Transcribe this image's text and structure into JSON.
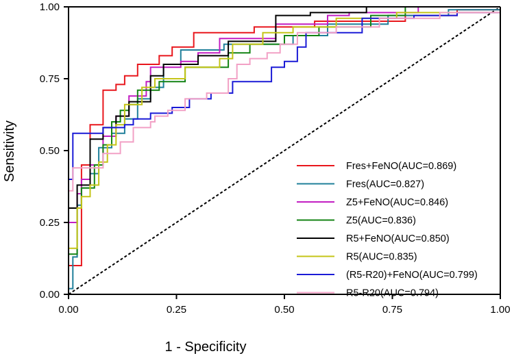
{
  "chart_data": {
    "type": "line",
    "title": "",
    "xlabel": "1 - Specificity",
    "ylabel": "Sensitivity",
    "xlim": [
      0,
      1
    ],
    "ylim": [
      0,
      1
    ],
    "xticks": [
      "0.00",
      "0.25",
      "0.50",
      "0.75",
      "1.00"
    ],
    "yticks": [
      "0.00",
      "0.25",
      "0.50",
      "0.75",
      "1.00"
    ],
    "grid": false,
    "legend_position": "bottom-right",
    "reference_line": {
      "name": "chance",
      "style": "dashed",
      "color": "#000000",
      "points": [
        [
          0,
          0
        ],
        [
          1,
          1
        ]
      ]
    },
    "series": [
      {
        "name": "Fres+FeNO(AUC=0.869)",
        "color": "#e8161c",
        "points": [
          [
            0,
            0
          ],
          [
            0,
            0.1
          ],
          [
            0.03,
            0.1
          ],
          [
            0.03,
            0.45
          ],
          [
            0.05,
            0.45
          ],
          [
            0.05,
            0.59
          ],
          [
            0.08,
            0.59
          ],
          [
            0.08,
            0.71
          ],
          [
            0.11,
            0.71
          ],
          [
            0.11,
            0.73
          ],
          [
            0.13,
            0.73
          ],
          [
            0.13,
            0.76
          ],
          [
            0.16,
            0.76
          ],
          [
            0.16,
            0.8
          ],
          [
            0.21,
            0.8
          ],
          [
            0.21,
            0.83
          ],
          [
            0.24,
            0.83
          ],
          [
            0.24,
            0.86
          ],
          [
            0.29,
            0.86
          ],
          [
            0.29,
            0.91
          ],
          [
            0.43,
            0.91
          ],
          [
            0.43,
            0.93
          ],
          [
            0.57,
            0.93
          ],
          [
            0.57,
            0.95
          ],
          [
            0.78,
            0.95
          ],
          [
            0.78,
            0.97
          ],
          [
            0.9,
            0.97
          ],
          [
            0.9,
            0.99
          ],
          [
            1,
            0.99
          ]
        ]
      },
      {
        "name": "Fres(AUC=0.827)",
        "color": "#1f7f9a",
        "points": [
          [
            0,
            0.02
          ],
          [
            0.01,
            0.02
          ],
          [
            0.01,
            0.13
          ],
          [
            0.02,
            0.13
          ],
          [
            0.02,
            0.31
          ],
          [
            0.03,
            0.31
          ],
          [
            0.03,
            0.37
          ],
          [
            0.05,
            0.37
          ],
          [
            0.05,
            0.42
          ],
          [
            0.07,
            0.42
          ],
          [
            0.07,
            0.51
          ],
          [
            0.1,
            0.51
          ],
          [
            0.1,
            0.56
          ],
          [
            0.13,
            0.56
          ],
          [
            0.13,
            0.61
          ],
          [
            0.16,
            0.61
          ],
          [
            0.16,
            0.68
          ],
          [
            0.19,
            0.68
          ],
          [
            0.19,
            0.72
          ],
          [
            0.22,
            0.72
          ],
          [
            0.22,
            0.8
          ],
          [
            0.26,
            0.8
          ],
          [
            0.26,
            0.85
          ],
          [
            0.36,
            0.85
          ],
          [
            0.36,
            0.87
          ],
          [
            0.52,
            0.87
          ],
          [
            0.52,
            0.9
          ],
          [
            0.6,
            0.9
          ],
          [
            0.6,
            0.94
          ],
          [
            0.74,
            0.94
          ],
          [
            0.74,
            0.97
          ],
          [
            0.88,
            0.97
          ],
          [
            0.88,
            0.99
          ],
          [
            1,
            0.99
          ]
        ]
      },
      {
        "name": "Z5+FeNO(AUC=0.846)",
        "color": "#c21ec2",
        "points": [
          [
            0,
            0.25
          ],
          [
            0.02,
            0.25
          ],
          [
            0.02,
            0.35
          ],
          [
            0.03,
            0.35
          ],
          [
            0.03,
            0.4
          ],
          [
            0.05,
            0.4
          ],
          [
            0.05,
            0.45
          ],
          [
            0.08,
            0.45
          ],
          [
            0.08,
            0.55
          ],
          [
            0.11,
            0.55
          ],
          [
            0.11,
            0.62
          ],
          [
            0.14,
            0.62
          ],
          [
            0.14,
            0.69
          ],
          [
            0.18,
            0.69
          ],
          [
            0.18,
            0.74
          ],
          [
            0.19,
            0.74
          ],
          [
            0.19,
            0.79
          ],
          [
            0.26,
            0.79
          ],
          [
            0.26,
            0.81
          ],
          [
            0.3,
            0.81
          ],
          [
            0.3,
            0.84
          ],
          [
            0.35,
            0.84
          ],
          [
            0.35,
            0.89
          ],
          [
            0.48,
            0.89
          ],
          [
            0.48,
            0.94
          ],
          [
            0.6,
            0.94
          ],
          [
            0.6,
            0.97
          ],
          [
            0.65,
            0.97
          ],
          [
            0.65,
            0.98
          ],
          [
            0.81,
            0.98
          ],
          [
            0.81,
            1.0
          ],
          [
            1,
            1.0
          ]
        ]
      },
      {
        "name": "Z5(AUC=0.836)",
        "color": "#138313",
        "points": [
          [
            0,
            0.14
          ],
          [
            0.02,
            0.14
          ],
          [
            0.02,
            0.3
          ],
          [
            0.03,
            0.3
          ],
          [
            0.03,
            0.37
          ],
          [
            0.06,
            0.37
          ],
          [
            0.06,
            0.45
          ],
          [
            0.08,
            0.45
          ],
          [
            0.08,
            0.52
          ],
          [
            0.1,
            0.52
          ],
          [
            0.1,
            0.6
          ],
          [
            0.12,
            0.6
          ],
          [
            0.12,
            0.64
          ],
          [
            0.14,
            0.64
          ],
          [
            0.14,
            0.66
          ],
          [
            0.16,
            0.66
          ],
          [
            0.16,
            0.71
          ],
          [
            0.21,
            0.71
          ],
          [
            0.21,
            0.74
          ],
          [
            0.27,
            0.74
          ],
          [
            0.27,
            0.79
          ],
          [
            0.37,
            0.79
          ],
          [
            0.37,
            0.84
          ],
          [
            0.42,
            0.84
          ],
          [
            0.42,
            0.87
          ],
          [
            0.5,
            0.87
          ],
          [
            0.5,
            0.9
          ],
          [
            0.58,
            0.9
          ],
          [
            0.58,
            0.93
          ],
          [
            0.7,
            0.93
          ],
          [
            0.7,
            0.97
          ],
          [
            0.78,
            0.97
          ],
          [
            0.78,
            1.0
          ],
          [
            1,
            1.0
          ]
        ]
      },
      {
        "name": "R5+FeNO(AUC=0.850)",
        "color": "#000000",
        "points": [
          [
            0,
            0.3
          ],
          [
            0.02,
            0.3
          ],
          [
            0.02,
            0.38
          ],
          [
            0.05,
            0.38
          ],
          [
            0.05,
            0.54
          ],
          [
            0.08,
            0.54
          ],
          [
            0.08,
            0.58
          ],
          [
            0.11,
            0.58
          ],
          [
            0.11,
            0.62
          ],
          [
            0.14,
            0.62
          ],
          [
            0.14,
            0.67
          ],
          [
            0.19,
            0.67
          ],
          [
            0.19,
            0.76
          ],
          [
            0.22,
            0.76
          ],
          [
            0.22,
            0.8
          ],
          [
            0.3,
            0.8
          ],
          [
            0.3,
            0.83
          ],
          [
            0.37,
            0.83
          ],
          [
            0.37,
            0.88
          ],
          [
            0.48,
            0.88
          ],
          [
            0.48,
            0.97
          ],
          [
            0.56,
            0.97
          ],
          [
            0.56,
            0.98
          ],
          [
            0.69,
            0.98
          ],
          [
            0.69,
            1.0
          ],
          [
            1,
            1.0
          ]
        ]
      },
      {
        "name": "R5(AUC=0.835)",
        "color": "#c4c417",
        "points": [
          [
            0,
            0.16
          ],
          [
            0.02,
            0.16
          ],
          [
            0.02,
            0.3
          ],
          [
            0.03,
            0.3
          ],
          [
            0.03,
            0.34
          ],
          [
            0.05,
            0.34
          ],
          [
            0.05,
            0.38
          ],
          [
            0.07,
            0.38
          ],
          [
            0.07,
            0.46
          ],
          [
            0.09,
            0.46
          ],
          [
            0.09,
            0.52
          ],
          [
            0.11,
            0.52
          ],
          [
            0.11,
            0.59
          ],
          [
            0.13,
            0.59
          ],
          [
            0.13,
            0.66
          ],
          [
            0.17,
            0.66
          ],
          [
            0.17,
            0.72
          ],
          [
            0.2,
            0.72
          ],
          [
            0.2,
            0.75
          ],
          [
            0.27,
            0.75
          ],
          [
            0.27,
            0.79
          ],
          [
            0.35,
            0.79
          ],
          [
            0.35,
            0.82
          ],
          [
            0.38,
            0.82
          ],
          [
            0.38,
            0.87
          ],
          [
            0.45,
            0.87
          ],
          [
            0.45,
            0.91
          ],
          [
            0.52,
            0.91
          ],
          [
            0.52,
            0.93
          ],
          [
            0.62,
            0.93
          ],
          [
            0.62,
            0.96
          ],
          [
            0.76,
            0.96
          ],
          [
            0.76,
            0.98
          ],
          [
            1,
            0.98
          ]
        ]
      },
      {
        "name": "(R5-R20)+FeNO(AUC=0.799)",
        "color": "#1a1ad6",
        "points": [
          [
            0,
            0.4
          ],
          [
            0.01,
            0.4
          ],
          [
            0.01,
            0.56
          ],
          [
            0.08,
            0.56
          ],
          [
            0.08,
            0.58
          ],
          [
            0.13,
            0.58
          ],
          [
            0.13,
            0.59
          ],
          [
            0.15,
            0.59
          ],
          [
            0.15,
            0.61
          ],
          [
            0.19,
            0.61
          ],
          [
            0.19,
            0.63
          ],
          [
            0.24,
            0.63
          ],
          [
            0.24,
            0.65
          ],
          [
            0.28,
            0.65
          ],
          [
            0.28,
            0.68
          ],
          [
            0.33,
            0.68
          ],
          [
            0.33,
            0.7
          ],
          [
            0.38,
            0.7
          ],
          [
            0.38,
            0.74
          ],
          [
            0.47,
            0.74
          ],
          [
            0.47,
            0.79
          ],
          [
            0.5,
            0.79
          ],
          [
            0.5,
            0.81
          ],
          [
            0.53,
            0.81
          ],
          [
            0.53,
            0.86
          ],
          [
            0.55,
            0.86
          ],
          [
            0.55,
            0.91
          ],
          [
            0.68,
            0.91
          ],
          [
            0.68,
            0.96
          ],
          [
            0.8,
            0.96
          ],
          [
            0.8,
            0.97
          ],
          [
            0.9,
            0.97
          ],
          [
            0.9,
            0.98
          ],
          [
            1,
            0.98
          ]
        ]
      },
      {
        "name": "R5-R20(AUC=0.794)",
        "color": "#f2a0c5",
        "points": [
          [
            0,
            0.36
          ],
          [
            0.01,
            0.36
          ],
          [
            0.01,
            0.44
          ],
          [
            0.08,
            0.44
          ],
          [
            0.08,
            0.49
          ],
          [
            0.12,
            0.49
          ],
          [
            0.12,
            0.53
          ],
          [
            0.15,
            0.53
          ],
          [
            0.15,
            0.58
          ],
          [
            0.19,
            0.58
          ],
          [
            0.19,
            0.6
          ],
          [
            0.2,
            0.6
          ],
          [
            0.2,
            0.62
          ],
          [
            0.23,
            0.62
          ],
          [
            0.23,
            0.64
          ],
          [
            0.27,
            0.64
          ],
          [
            0.27,
            0.68
          ],
          [
            0.32,
            0.68
          ],
          [
            0.32,
            0.7
          ],
          [
            0.37,
            0.7
          ],
          [
            0.37,
            0.75
          ],
          [
            0.39,
            0.75
          ],
          [
            0.39,
            0.8
          ],
          [
            0.42,
            0.8
          ],
          [
            0.42,
            0.82
          ],
          [
            0.46,
            0.82
          ],
          [
            0.46,
            0.84
          ],
          [
            0.49,
            0.84
          ],
          [
            0.49,
            0.87
          ],
          [
            0.53,
            0.87
          ],
          [
            0.53,
            0.91
          ],
          [
            0.62,
            0.91
          ],
          [
            0.62,
            0.93
          ],
          [
            0.72,
            0.93
          ],
          [
            0.72,
            0.96
          ],
          [
            0.86,
            0.96
          ],
          [
            0.86,
            0.98
          ],
          [
            1,
            0.98
          ]
        ]
      }
    ]
  }
}
